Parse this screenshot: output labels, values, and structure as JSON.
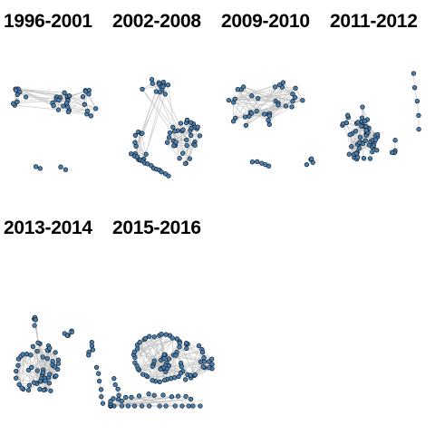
{
  "panels": [
    {
      "title": "1996-2001"
    },
    {
      "title": "2002-2008"
    },
    {
      "title": "2009-2010"
    },
    {
      "title": "2011-2012"
    },
    {
      "title": "2013-2014"
    },
    {
      "title": "2015-2016"
    }
  ],
  "node_color": "#4a7fae",
  "edge_color": "#c2c2c2"
}
